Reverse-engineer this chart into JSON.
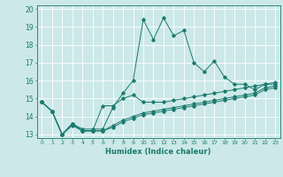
{
  "title": "",
  "xlabel": "Humidex (Indice chaleur)",
  "xlim": [
    -0.5,
    23.5
  ],
  "ylim": [
    12.8,
    20.2
  ],
  "yticks": [
    13,
    14,
    15,
    16,
    17,
    18,
    19,
    20
  ],
  "xticks": [
    0,
    1,
    2,
    3,
    4,
    5,
    6,
    7,
    8,
    9,
    10,
    11,
    12,
    13,
    14,
    15,
    16,
    17,
    18,
    19,
    20,
    21,
    22,
    23
  ],
  "bg_color": "#cce8e8",
  "grid_color": "#ffffff",
  "line_color": "#1a7a6e",
  "lines": [
    {
      "x": [
        0,
        1,
        2,
        3,
        4,
        5,
        6,
        7,
        8,
        9,
        10,
        11,
        12,
        13,
        14,
        15,
        16,
        17,
        18,
        19,
        20,
        21,
        22,
        23
      ],
      "y": [
        14.8,
        14.3,
        13.0,
        13.6,
        13.3,
        13.3,
        13.3,
        14.5,
        15.3,
        16.0,
        19.4,
        18.3,
        19.5,
        18.5,
        18.8,
        17.0,
        16.5,
        17.1,
        16.2,
        15.8,
        15.8,
        15.5,
        15.8,
        15.8
      ]
    },
    {
      "x": [
        0,
        1,
        2,
        3,
        4,
        5,
        6,
        7,
        8,
        9,
        10,
        11,
        12,
        13,
        14,
        15,
        16,
        17,
        18,
        19,
        20,
        21,
        22,
        23
      ],
      "y": [
        14.8,
        14.3,
        13.0,
        13.6,
        13.2,
        13.2,
        14.6,
        14.6,
        15.0,
        15.2,
        14.8,
        14.8,
        14.8,
        14.9,
        15.0,
        15.1,
        15.2,
        15.3,
        15.4,
        15.5,
        15.6,
        15.7,
        15.8,
        15.9
      ]
    },
    {
      "x": [
        0,
        1,
        2,
        3,
        4,
        5,
        6,
        7,
        8,
        9,
        10,
        11,
        12,
        13,
        14,
        15,
        16,
        17,
        18,
        19,
        20,
        21,
        22,
        23
      ],
      "y": [
        14.8,
        14.3,
        13.0,
        13.5,
        13.2,
        13.2,
        13.2,
        13.5,
        13.8,
        14.0,
        14.2,
        14.3,
        14.4,
        14.5,
        14.6,
        14.7,
        14.8,
        14.9,
        15.0,
        15.1,
        15.2,
        15.3,
        15.6,
        15.7
      ]
    },
    {
      "x": [
        0,
        1,
        2,
        3,
        4,
        5,
        6,
        7,
        8,
        9,
        10,
        11,
        12,
        13,
        14,
        15,
        16,
        17,
        18,
        19,
        20,
        21,
        22,
        23
      ],
      "y": [
        14.8,
        14.3,
        13.0,
        13.6,
        13.2,
        13.2,
        13.2,
        13.4,
        13.7,
        13.9,
        14.1,
        14.2,
        14.3,
        14.4,
        14.5,
        14.6,
        14.7,
        14.8,
        14.9,
        15.0,
        15.1,
        15.2,
        15.5,
        15.6
      ]
    }
  ]
}
